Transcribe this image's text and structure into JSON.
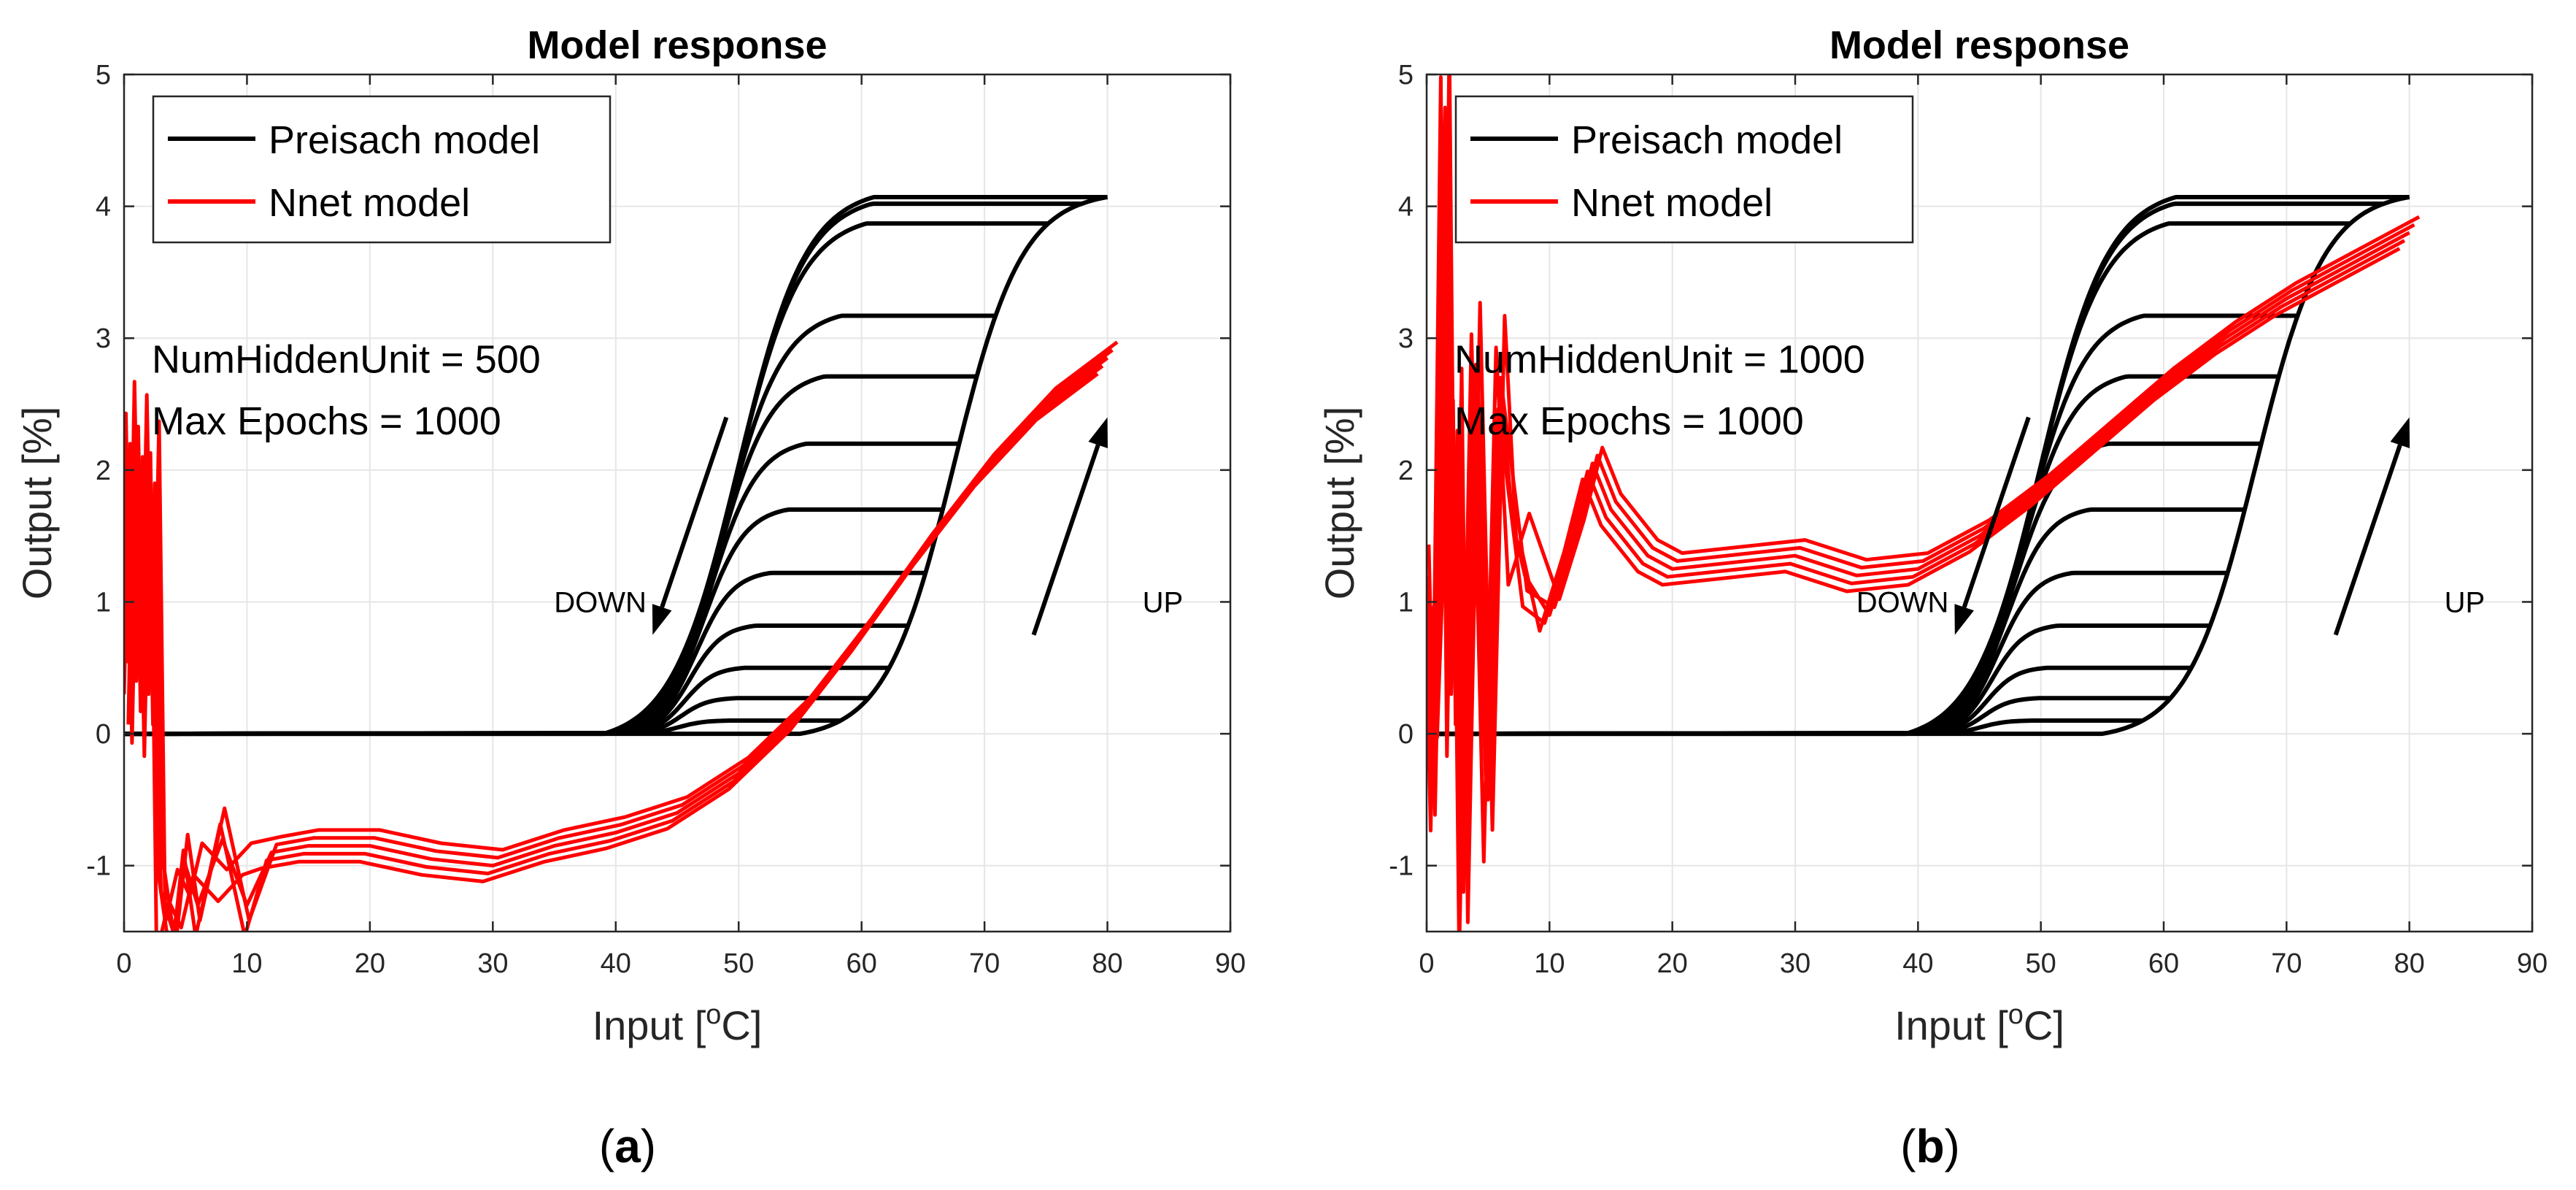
{
  "colors": {
    "preisach": "#000000",
    "nnet": "#ff0000",
    "grid": "#e6e6e6",
    "axis": "#262626"
  },
  "chart_data": [
    {
      "type": "line",
      "panel_label": "a",
      "title": "Model response",
      "xlabel": "Input [",
      "xlabel_sup": "o",
      "xlabel_tail": "C]",
      "ylabel": "Output [%]",
      "xlim": [
        0,
        90
      ],
      "ylim": [
        -1.5,
        5
      ],
      "xticks": [
        0,
        10,
        20,
        30,
        40,
        50,
        60,
        70,
        80,
        90
      ],
      "yticks": [
        -1,
        0,
        1,
        2,
        3,
        4,
        5
      ],
      "grid": true,
      "legend_position": "top-left",
      "legend": [
        {
          "label": "Preisach model",
          "color": "#000000"
        },
        {
          "label": "Nnet model",
          "color": "#ff0000"
        }
      ],
      "annotations": {
        "line1": "NumHiddenUnit = 500",
        "line2": "Max Epochs = 1000",
        "down_label": "DOWN",
        "up_label": "UP",
        "down_arrow": {
          "from": [
            49,
            2.4
          ],
          "to": [
            43,
            0.75
          ]
        },
        "up_arrow": {
          "from": [
            74,
            0.75
          ],
          "to": [
            80,
            2.4
          ]
        }
      },
      "preisach": {
        "description": "Preisach hysteresis loops (sigmoid branches); ascending branch from 0 to 4.07 between 55 and 80 C, descending branches from plateau levels",
        "up_branch": {
          "x0": 55,
          "x1": 80,
          "ymax": 4.07
        },
        "plateaus": [
          4.07,
          4.02,
          3.87,
          3.17,
          2.71,
          2.2,
          1.7,
          1.22,
          0.82,
          0.5,
          0.27,
          0.1
        ],
        "down_start_x": 80,
        "down_zero_x": 39
      },
      "nnet": {
        "description": "Neural-net response, multiple red overlapping trajectories",
        "x": [
          0,
          0.5,
          1,
          1.5,
          2,
          2.5,
          3,
          4,
          5,
          6,
          8,
          10,
          12,
          15,
          20,
          25,
          30,
          35,
          40,
          45,
          50,
          55,
          60,
          65,
          70,
          75,
          80
        ],
        "y": [
          0.3,
          2.2,
          0.4,
          2.1,
          0.3,
          1.9,
          -1.2,
          -1.5,
          -1.0,
          -1.3,
          -0.8,
          -1.3,
          -0.9,
          -0.85,
          -0.85,
          -0.95,
          -1.0,
          -0.85,
          -0.75,
          -0.6,
          -0.3,
          0.15,
          0.75,
          1.4,
          2.0,
          2.5,
          2.85
        ],
        "spread": 0.12
      }
    },
    {
      "type": "line",
      "panel_label": "b",
      "title": "Model response",
      "xlabel": "Input [",
      "xlabel_sup": "o",
      "xlabel_tail": "C]",
      "ylabel": "Output [%]",
      "xlim": [
        0,
        90
      ],
      "ylim": [
        -1.5,
        5
      ],
      "xticks": [
        0,
        10,
        20,
        30,
        40,
        50,
        60,
        70,
        80,
        90
      ],
      "yticks": [
        -1,
        0,
        1,
        2,
        3,
        4,
        5
      ],
      "grid": true,
      "legend_position": "top-left",
      "legend": [
        {
          "label": "Preisach model",
          "color": "#000000"
        },
        {
          "label": "Nnet model",
          "color": "#ff0000"
        }
      ],
      "annotations": {
        "line1": "NumHiddenUnit = 1000",
        "line2": "Max Epochs = 1000",
        "down_label": "DOWN",
        "up_label": "UP",
        "down_arrow": {
          "from": [
            49,
            2.4
          ],
          "to": [
            43,
            0.75
          ]
        },
        "up_arrow": {
          "from": [
            74,
            0.75
          ],
          "to": [
            80,
            2.4
          ]
        }
      },
      "preisach": {
        "description": "Preisach hysteresis loops (sigmoid branches); ascending branch from 0 to 4.07 between 55 and 80 C, descending branches from plateau levels",
        "up_branch": {
          "x0": 55,
          "x1": 80,
          "ymax": 4.07
        },
        "plateaus": [
          4.07,
          4.02,
          3.87,
          3.17,
          2.71,
          2.2,
          1.7,
          1.22,
          0.82,
          0.5,
          0.27,
          0.1
        ],
        "down_start_x": 80,
        "down_zero_x": 39
      },
      "nnet": {
        "description": "Neural-net response, multiple red overlapping trajectories",
        "x": [
          0,
          0.5,
          1,
          1.5,
          2,
          2.5,
          3,
          4,
          5,
          6,
          7,
          8,
          10,
          12,
          13.5,
          15,
          18,
          20,
          25,
          30,
          35,
          40,
          45,
          50,
          55,
          60,
          65,
          70,
          75,
          80
        ],
        "y": [
          1.2,
          -0.5,
          1.5,
          4.75,
          0.3,
          2.3,
          -1.2,
          2.8,
          -0.5,
          2.7,
          1.6,
          1.2,
          0.9,
          1.5,
          2.05,
          1.7,
          1.35,
          1.25,
          1.3,
          1.35,
          1.2,
          1.25,
          1.5,
          1.85,
          2.25,
          2.65,
          3.0,
          3.3,
          3.55,
          3.8
        ],
        "spread": 0.12
      }
    }
  ]
}
